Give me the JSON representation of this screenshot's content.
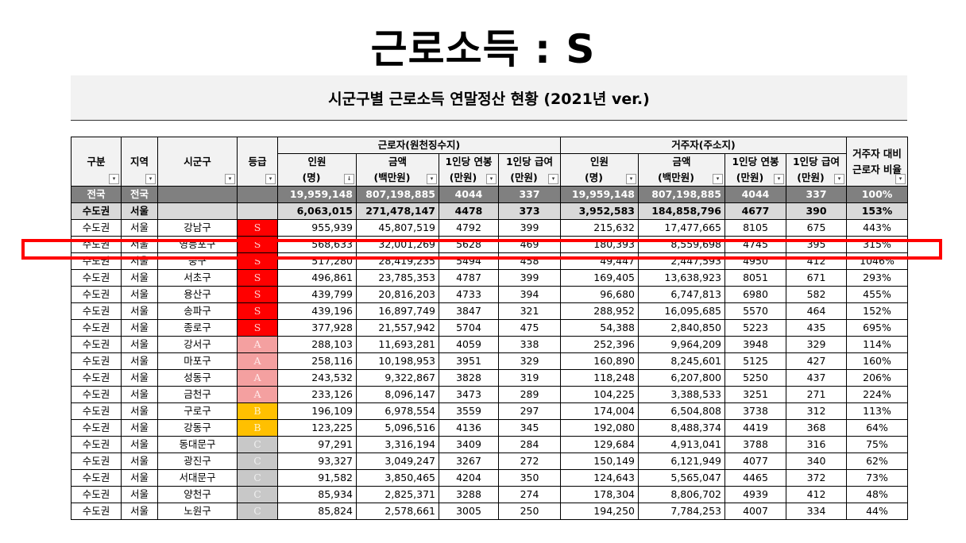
{
  "slide": {
    "title": "근로소득 : S",
    "sheet_title": "시군구별 근로소득 연말정산 현황 (2021년 ver.)"
  },
  "table": {
    "headers": {
      "region_group": "구분",
      "region": "지역",
      "district": "시군구",
      "grade": "등급",
      "worker_group": "근로자(원천징수지)",
      "resident_group": "거주자(주소지)",
      "ratio_l1": "거주자 대비",
      "ratio_l2": "근로자 비율",
      "people_l1": "인원",
      "people_l2": "(명)",
      "amount_l1": "금액",
      "amount_l2": "(백만원)",
      "annual_l1": "1인당 연봉",
      "annual_l2": "(만원)",
      "monthly_l1": "1인당 급여",
      "monthly_l2": "(만원)"
    },
    "filter_glyph": "▾",
    "sort_glyph": "↓",
    "total_row": [
      "전국",
      "전국",
      "",
      "",
      "19,959,148",
      "807,198,885",
      "4044",
      "337",
      "19,959,148",
      "807,198,885",
      "4044",
      "337",
      "100%"
    ],
    "subtotal_row": [
      "수도권",
      "서울",
      "",
      "",
      "6,063,015",
      "271,478,147",
      "4478",
      "373",
      "3,952,583",
      "184,858,796",
      "4677",
      "390",
      "153%"
    ],
    "clipped_row": [
      "수도권",
      "서울",
      "강남구",
      "S",
      "955,939",
      "45,807,519",
      "4792",
      "399",
      "215,632",
      "17,477,665",
      "8105",
      "675",
      "443%"
    ],
    "rows": [
      [
        "수도권",
        "서울",
        "영등포구",
        "S",
        "568,633",
        "32,001,269",
        "5628",
        "469",
        "180,393",
        "8,559,698",
        "4745",
        "395",
        "315%"
      ],
      [
        "수도권",
        "서울",
        "중구",
        "S",
        "517,280",
        "28,419,235",
        "5494",
        "458",
        "49,447",
        "2,447,593",
        "4950",
        "412",
        "1046%"
      ],
      [
        "수도권",
        "서울",
        "서초구",
        "S",
        "496,861",
        "23,785,353",
        "4787",
        "399",
        "169,405",
        "13,638,923",
        "8051",
        "671",
        "293%"
      ],
      [
        "수도권",
        "서울",
        "용산구",
        "S",
        "439,799",
        "20,816,203",
        "4733",
        "394",
        "96,680",
        "6,747,813",
        "6980",
        "582",
        "455%"
      ],
      [
        "수도권",
        "서울",
        "송파구",
        "S",
        "439,196",
        "16,897,749",
        "3847",
        "321",
        "288,952",
        "16,095,685",
        "5570",
        "464",
        "152%"
      ],
      [
        "수도권",
        "서울",
        "종로구",
        "S",
        "377,928",
        "21,557,942",
        "5704",
        "475",
        "54,388",
        "2,840,850",
        "5223",
        "435",
        "695%"
      ],
      [
        "수도권",
        "서울",
        "강서구",
        "A",
        "288,103",
        "11,693,281",
        "4059",
        "338",
        "252,396",
        "9,964,209",
        "3948",
        "329",
        "114%"
      ],
      [
        "수도권",
        "서울",
        "마포구",
        "A",
        "258,116",
        "10,198,953",
        "3951",
        "329",
        "160,890",
        "8,245,601",
        "5125",
        "427",
        "160%"
      ],
      [
        "수도권",
        "서울",
        "성동구",
        "A",
        "243,532",
        "9,322,867",
        "3828",
        "319",
        "118,248",
        "6,207,800",
        "5250",
        "437",
        "206%"
      ],
      [
        "수도권",
        "서울",
        "금천구",
        "A",
        "233,126",
        "8,096,147",
        "3473",
        "289",
        "104,225",
        "3,388,533",
        "3251",
        "271",
        "224%"
      ],
      [
        "수도권",
        "서울",
        "구로구",
        "B",
        "196,109",
        "6,978,554",
        "3559",
        "297",
        "174,004",
        "6,504,808",
        "3738",
        "312",
        "113%"
      ],
      [
        "수도권",
        "서울",
        "강동구",
        "B",
        "123,225",
        "5,096,516",
        "4136",
        "345",
        "192,080",
        "8,488,374",
        "4419",
        "368",
        "64%"
      ],
      [
        "수도권",
        "서울",
        "동대문구",
        "C",
        "97,291",
        "3,316,194",
        "3409",
        "284",
        "129,684",
        "4,913,041",
        "3788",
        "316",
        "75%"
      ],
      [
        "수도권",
        "서울",
        "광진구",
        "C",
        "93,327",
        "3,049,247",
        "3267",
        "272",
        "150,149",
        "6,121,949",
        "4077",
        "340",
        "62%"
      ],
      [
        "수도권",
        "서울",
        "서대문구",
        "C",
        "91,582",
        "3,850,465",
        "4204",
        "350",
        "124,643",
        "5,565,047",
        "4465",
        "372",
        "73%"
      ],
      [
        "수도권",
        "서울",
        "양천구",
        "C",
        "85,934",
        "2,825,371",
        "3288",
        "274",
        "178,304",
        "8,806,702",
        "4939",
        "412",
        "48%"
      ],
      [
        "수도권",
        "서울",
        "노원구",
        "C",
        "85,824",
        "2,578,661",
        "3005",
        "250",
        "194,250",
        "7,784,253",
        "4007",
        "334",
        "44%"
      ]
    ]
  }
}
